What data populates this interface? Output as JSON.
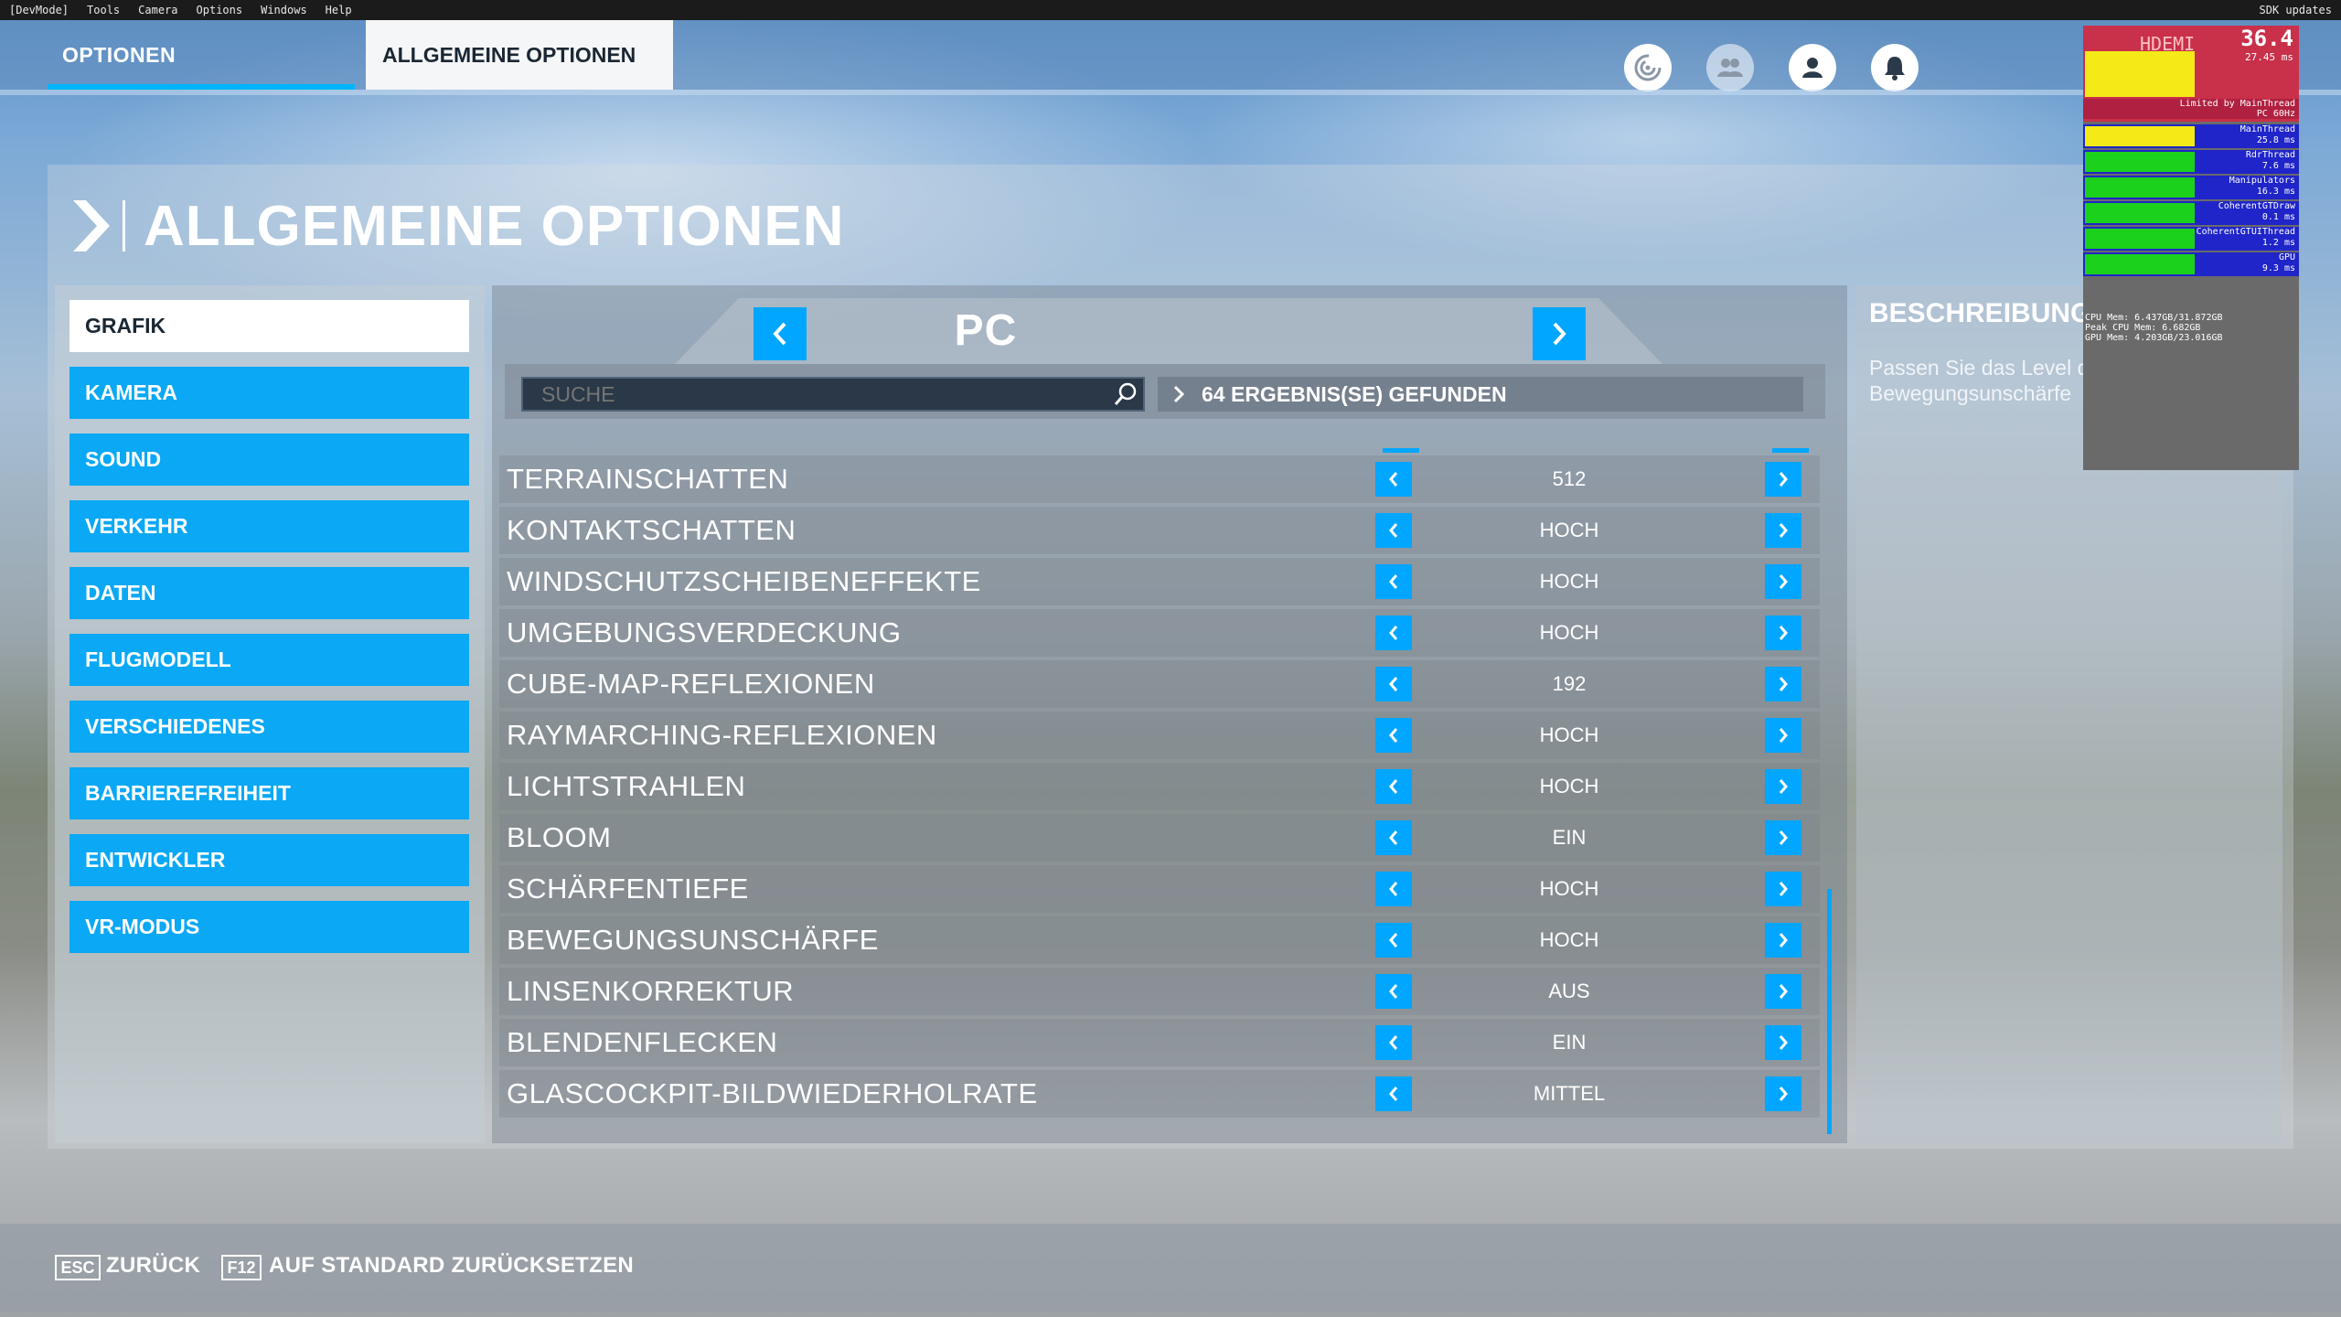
{
  "devmenu": {
    "items": [
      "[DevMode]",
      "Tools",
      "Camera",
      "Options",
      "Windows",
      "Help"
    ],
    "right_label": "SDK updates"
  },
  "topnav": {
    "tab_options": "OPTIONEN",
    "tab_general": "ALLGEMEINE OPTIONEN"
  },
  "perf": {
    "fps": "36.4",
    "hdemi": "HDEMI",
    "frame_ms": "27.45 ms",
    "limited": "Limited by MainThread",
    "pc": "PC 60Hz",
    "rows": [
      {
        "name": "MainThread",
        "value": "25.8 ms"
      },
      {
        "name": "RdrThread",
        "value": "7.6 ms"
      },
      {
        "name": "Manipulators",
        "value": "16.3 ms"
      },
      {
        "name": "CoherentGTDraw",
        "value": "0.1 ms"
      },
      {
        "name": "CoherentGTUIThread",
        "value": "1.2 ms"
      },
      {
        "name": "GPU",
        "value": "9.3 ms"
      }
    ],
    "mem_cpu": "CPU Mem: 6.437GB/31.872GB",
    "mem_peak": "Peak CPU Mem: 6.682GB",
    "mem_gpu": "GPU Mem: 4.203GB/23.016GB"
  },
  "header": {
    "title": "ALLGEMEINE OPTIONEN"
  },
  "sidebar": {
    "items": [
      {
        "label": "GRAFIK",
        "active": true
      },
      {
        "label": "KAMERA"
      },
      {
        "label": "SOUND"
      },
      {
        "label": "VERKEHR"
      },
      {
        "label": "DATEN"
      },
      {
        "label": "FLUGMODELL"
      },
      {
        "label": "VERSCHIEDENES"
      },
      {
        "label": "BARRIEREFREIHEIT"
      },
      {
        "label": "ENTWICKLER"
      },
      {
        "label": "VR-MODUS"
      }
    ]
  },
  "center": {
    "preset": "PC",
    "search_placeholder": "SUCHE",
    "results": "64 ERGEBNIS(SE) GEFUNDEN",
    "settings": [
      {
        "label": "TERRAINSCHATTEN",
        "value": "512"
      },
      {
        "label": "KONTAKTSCHATTEN",
        "value": "HOCH"
      },
      {
        "label": "WINDSCHUTZSCHEIBENEFFEKTE",
        "value": "HOCH"
      },
      {
        "label": "UMGEBUNGSVERDECKUNG",
        "value": "HOCH"
      },
      {
        "label": "CUBE-MAP-REFLEXIONEN",
        "value": "192"
      },
      {
        "label": "RAYMARCHING-REFLEXIONEN",
        "value": "HOCH"
      },
      {
        "label": "LICHTSTRAHLEN",
        "value": "HOCH"
      },
      {
        "label": "BLOOM",
        "value": "EIN"
      },
      {
        "label": "SCHÄRFENTIEFE",
        "value": "HOCH"
      },
      {
        "label": "BEWEGUNGSUNSCHÄRFE",
        "value": "HOCH"
      },
      {
        "label": "LINSENKORREKTUR",
        "value": "AUS"
      },
      {
        "label": "BLENDENFLECKEN",
        "value": "EIN"
      },
      {
        "label": "GLASCOCKPIT-BILDWIEDERHOLRATE",
        "value": "MITTEL"
      }
    ]
  },
  "description": {
    "title": "BESCHREIBUNG",
    "text": "Passen Sie das Level der Bewegungsunschärfe"
  },
  "footer": {
    "esc_key": "ESC",
    "esc_label": "ZURÜCK",
    "f12_key": "F12",
    "f12_label": "AUF STANDARD ZURÜCKSETZEN"
  },
  "colors": {
    "accent": "#00a6ff",
    "sidebar_item": "#0aa8f5"
  }
}
